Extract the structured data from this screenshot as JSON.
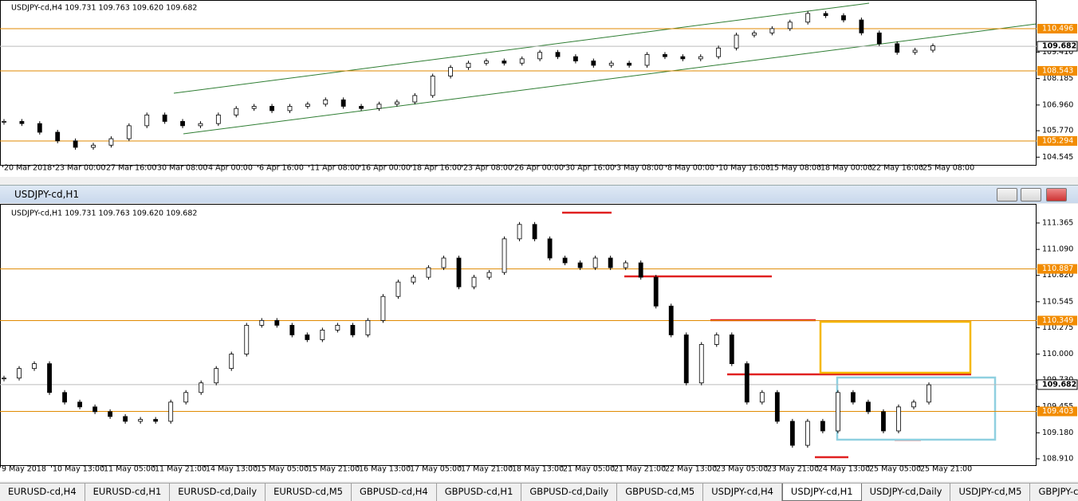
{
  "window_title": "USDJPY-cd,H1",
  "panels": [
    {
      "header": "USDJPY-cd,H4  109.731 109.763 109.620 109.682",
      "ylim": [
        104.261,
        111.714
      ],
      "yticks": [
        {
          "value": 109.41,
          "label": "109.410"
        },
        108.185,
        {
          "value": 106.96,
          "label": "106.960"
        },
        {
          "value": 105.77,
          "label": "105.770"
        },
        104.545
      ],
      "levels": [
        110.496,
        108.543,
        105.294
      ],
      "current_price": 109.682,
      "xlabels": [
        "20 Mar 2018",
        "23 Mar 00:00",
        "27 Mar 16:00",
        "30 Mar 08:00",
        "4 Apr 00:00",
        "6 Apr 16:00",
        "11 Apr 08:00",
        "16 Apr 00:00",
        "18 Apr 16:00",
        "23 Apr 08:00",
        "26 Apr 00:00",
        "30 Apr 16:00",
        "3 May 08:00",
        "8 May 00:00",
        "10 May 16:00",
        "15 May 08:00",
        "18 May 00:00",
        "22 May 16:00",
        "25 May 08:00"
      ],
      "closes": [
        106.2,
        106.1,
        105.7,
        105.3,
        105.0,
        105.1,
        105.4,
        106.0,
        106.5,
        106.2,
        106.0,
        106.1,
        106.5,
        106.8,
        106.9,
        106.7,
        106.9,
        107.0,
        107.2,
        106.9,
        106.8,
        107.0,
        107.1,
        107.4,
        108.3,
        108.7,
        108.9,
        109.0,
        108.9,
        109.1,
        109.4,
        109.2,
        109.0,
        108.8,
        108.9,
        108.8,
        109.3,
        109.2,
        109.1,
        109.2,
        109.6,
        110.2,
        110.3,
        110.5,
        110.8,
        111.2,
        111.1,
        110.9,
        110.3,
        109.8,
        109.4,
        109.5,
        109.7
      ]
    },
    {
      "header": "USDJPY-cd,H1  109.731 109.763 109.620 109.682",
      "ylim": [
        108.86,
        111.514
      ],
      "yticks": [
        111.365,
        {
          "value": 111.09,
          "label": "111.090"
        },
        {
          "value": 110.82,
          "label": "110.820"
        },
        110.545,
        110.275,
        {
          "value": 110,
          "label": "110.000"
        },
        {
          "value": 109.73,
          "label": "109.730"
        },
        109.455,
        {
          "value": 109.18,
          "label": "109.180"
        },
        {
          "value": 108.91,
          "label": "108.910"
        }
      ],
      "levels": [
        110.887,
        110.349,
        109.403
      ],
      "current_price": 109.682,
      "xlabels": [
        "9 May 2018",
        "10 May 13:00",
        "11 May 05:00",
        "11 May 21:00",
        "14 May 13:00",
        "15 May 05:00",
        "15 May 21:00",
        "16 May 13:00",
        "17 May 05:00",
        "17 May 21:00",
        "18 May 13:00",
        "21 May 05:00",
        "21 May 21:00",
        "22 May 13:00",
        "23 May 05:00",
        "23 May 21:00",
        "24 May 13:00",
        "25 May 05:00",
        "25 May 21:00"
      ],
      "closes": [
        109.75,
        109.85,
        109.9,
        109.6,
        109.5,
        109.45,
        109.4,
        109.35,
        109.3,
        109.32,
        109.3,
        109.5,
        109.6,
        109.7,
        109.85,
        110.0,
        110.3,
        110.35,
        110.3,
        110.2,
        110.15,
        110.25,
        110.3,
        110.2,
        110.35,
        110.6,
        110.75,
        110.8,
        110.9,
        111.0,
        110.7,
        110.8,
        110.85,
        111.2,
        111.35,
        111.2,
        111.0,
        110.95,
        110.9,
        111.0,
        110.9,
        110.95,
        110.8,
        110.5,
        110.2,
        109.7,
        110.1,
        110.2,
        109.9,
        109.5,
        109.6,
        109.3,
        109.05,
        109.3,
        109.2,
        109.6,
        109.5,
        109.4,
        109.2,
        109.45,
        109.5,
        109.68
      ]
    }
  ],
  "tabs": [
    "EURUSD-cd,H4",
    "EURUSD-cd,H1",
    "EURUSD-cd,Daily",
    "EURUSD-cd,M5",
    "GBPUSD-cd,H4",
    "GBPUSD-cd,H1",
    "GBPUSD-cd,Daily",
    "GBPUSD-cd,M5",
    "USDJPY-cd,H4",
    "USDJPY-cd,H1",
    "USDJPY-cd,Daily",
    "USDJPY-cd,M5",
    "GBPJPY-cd,I"
  ],
  "active_tab": 9
}
